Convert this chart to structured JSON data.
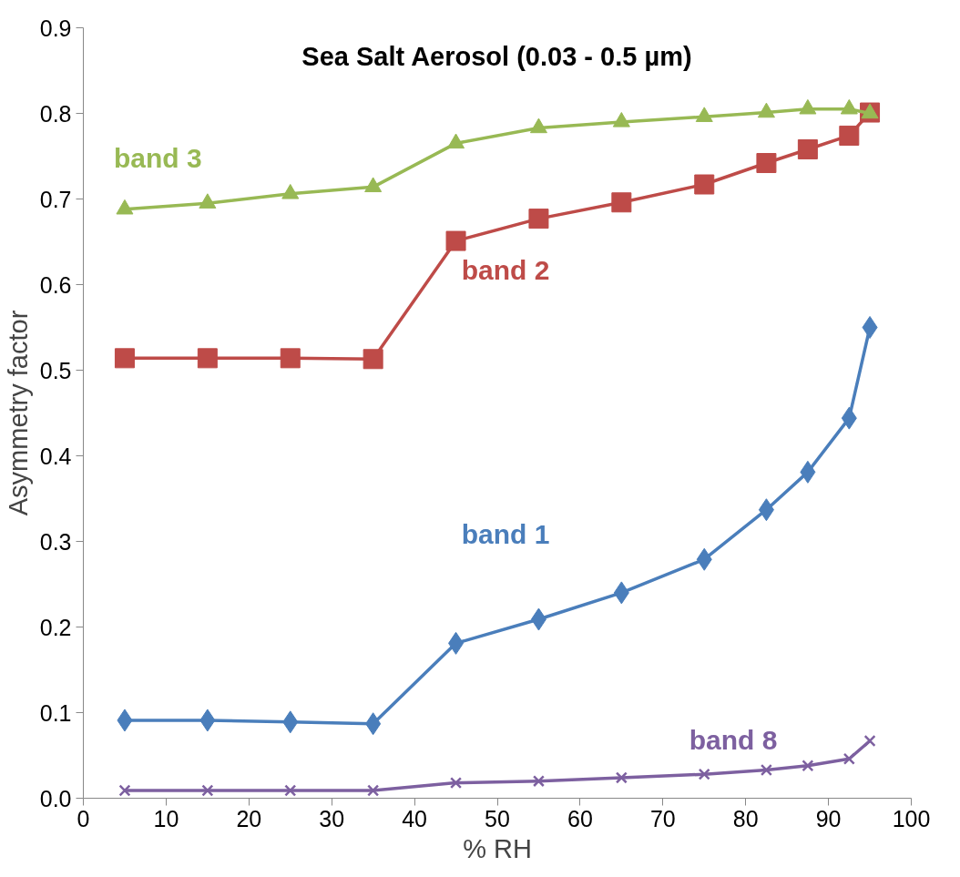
{
  "chart_data": {
    "type": "line",
    "title": "Sea Salt Aerosol (0.03 - 0.5 µm)",
    "xlabel": "% RH",
    "ylabel": "Asymmetry factor",
    "x": [
      5,
      15,
      25,
      35,
      45,
      55,
      65,
      75,
      82.5,
      87.5,
      92.5,
      95
    ],
    "xlim": [
      0,
      100
    ],
    "xticks": [
      0,
      10,
      20,
      30,
      40,
      50,
      60,
      70,
      80,
      90,
      100
    ],
    "ylim": [
      0,
      0.9
    ],
    "yticks": [
      {
        "value": 0,
        "label": "0.0"
      },
      0.1,
      0.2,
      0.3,
      0.4,
      0.5,
      0.6,
      0.7,
      0.8,
      0.9
    ],
    "grid": false,
    "legend": false,
    "line_style": "solid",
    "series": [
      {
        "name": "band 1",
        "color": "#4a7ebb",
        "marker": "diamond",
        "values": [
          0.091,
          0.091,
          0.089,
          0.087,
          0.181,
          0.209,
          0.24,
          0.279,
          0.337,
          0.381,
          0.444,
          0.55
        ]
      },
      {
        "name": "band 2",
        "color": "#be4b48",
        "marker": "square",
        "values": [
          0.514,
          0.514,
          0.514,
          0.513,
          0.651,
          0.677,
          0.696,
          0.717,
          0.742,
          0.758,
          0.774,
          0.801
        ]
      },
      {
        "name": "band 3",
        "color": "#98b954",
        "marker": "triangle",
        "values": [
          0.688,
          0.695,
          0.706,
          0.714,
          0.765,
          0.783,
          0.79,
          0.796,
          0.801,
          0.805,
          0.805,
          0.8
        ]
      },
      {
        "name": "band 8",
        "color": "#7d60a0",
        "marker": "cross",
        "values": [
          0.009,
          0.009,
          0.009,
          0.009,
          0.018,
          0.02,
          0.024,
          0.028,
          0.033,
          0.038,
          0.046,
          0.067
        ]
      }
    ]
  }
}
